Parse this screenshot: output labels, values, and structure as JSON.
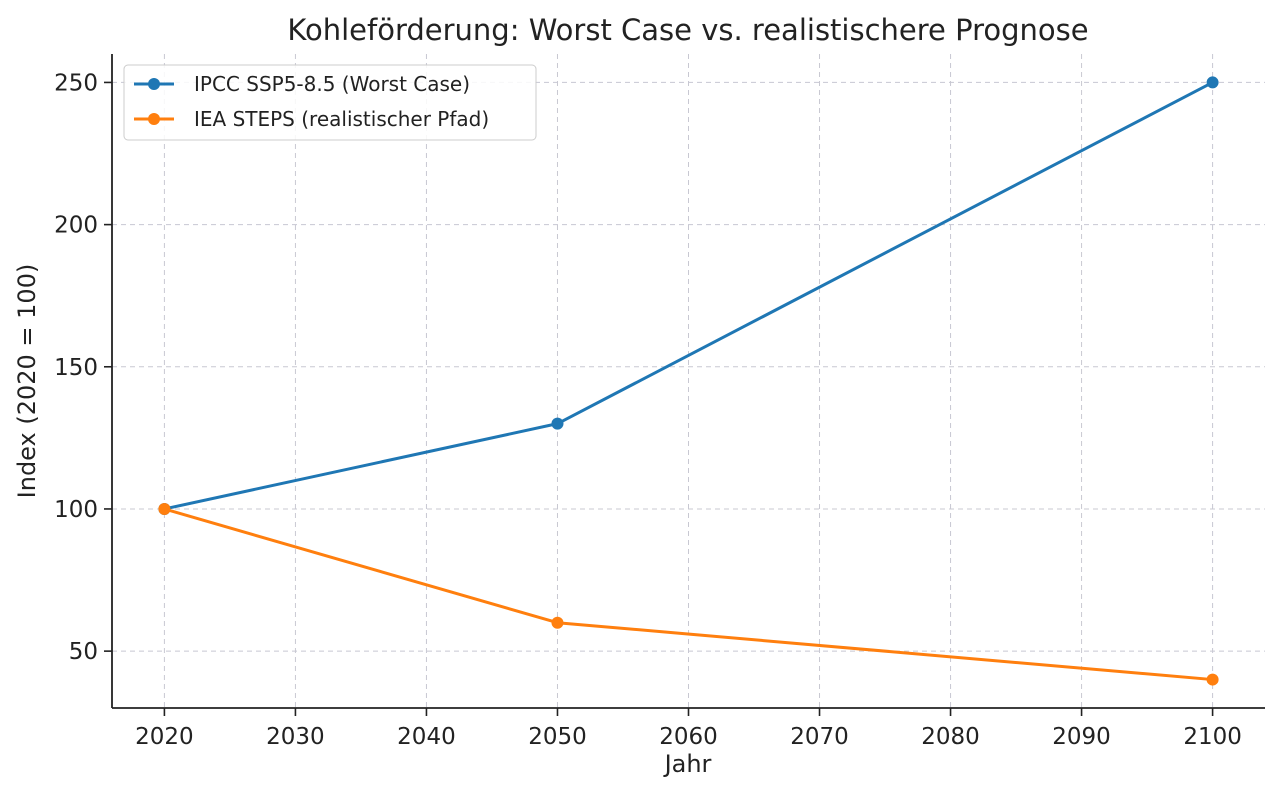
{
  "chart_data": {
    "type": "line",
    "title": "Kohleförderung: Worst Case vs. realistischere Prognose",
    "xlabel": "Jahr",
    "ylabel": "Index (2020 = 100)",
    "xlim": [
      2016,
      2104
    ],
    "ylim": [
      30,
      260
    ],
    "x_ticks": [
      2020,
      2030,
      2040,
      2050,
      2060,
      2070,
      2080,
      2090,
      2100
    ],
    "y_ticks": [
      50,
      100,
      150,
      200,
      250
    ],
    "grid": true,
    "legend_position": "top-left",
    "series": [
      {
        "name": "IPCC SSP5-8.5 (Worst Case)",
        "color": "#1f77b4",
        "x": [
          2020,
          2050,
          2100
        ],
        "values": [
          100,
          130,
          250
        ]
      },
      {
        "name": "IEA STEPS (realistischer Pfad)",
        "color": "#ff7f0e",
        "x": [
          2020,
          2050,
          2100
        ],
        "values": [
          100,
          60,
          40
        ]
      }
    ]
  }
}
